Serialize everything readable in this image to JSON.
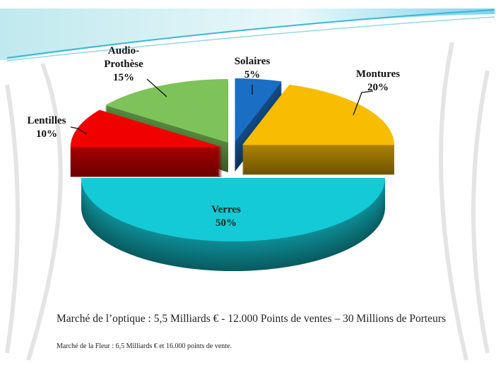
{
  "chart_data": {
    "type": "pie",
    "categories": [
      "Solaires",
      "Montures",
      "Verres",
      "Lentilles",
      "Audio-Prothèse"
    ],
    "values": [
      5,
      20,
      50,
      10,
      15
    ],
    "value_labels": [
      "5%",
      "20%",
      "50%",
      "10%",
      "15%"
    ],
    "colors": [
      "#1a6fc4",
      "#f8bc00",
      "#14cad6",
      "#f00000",
      "#7dc35a"
    ],
    "annotations": [
      "Marché de l’optique : 5,5 Milliards € - 12.000 Points de ventes – 30 Millions de Porteurs",
      "Marché de la Fleur :  6,5 Milliards € et 16.000 points de vente."
    ]
  }
}
